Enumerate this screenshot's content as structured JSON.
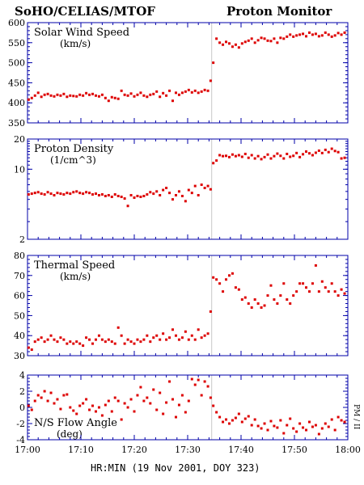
{
  "header": {
    "left": "SoHO/CELIAS/MTOF",
    "right": "Proton Monitor"
  },
  "x_axis_label": "HR:MIN (19 Nov 2001, DOY 323)",
  "side_label": "PM / II",
  "colors": {
    "points": "#dd0000",
    "axes": "#0000aa",
    "marker_line": "#c8c8c8"
  },
  "chart_data": [
    {
      "type": "scatter",
      "title": "Solar Wind Speed",
      "units": "(km/s)",
      "xlim": [
        0,
        60
      ],
      "ylim": [
        350,
        600
      ],
      "yticks": [
        350,
        400,
        450,
        500,
        550,
        600
      ],
      "xtick_labels": [
        "17:00",
        "17:10",
        "17:20",
        "17:30",
        "17:40",
        "17:50",
        "18:00"
      ],
      "marker_x": 34.5,
      "x": [
        0.2,
        0.8,
        1.4,
        2.0,
        2.6,
        3.2,
        3.8,
        4.4,
        5.0,
        5.6,
        6.2,
        6.8,
        7.4,
        8.0,
        8.6,
        9.2,
        9.8,
        10.4,
        11.0,
        11.6,
        12.2,
        12.8,
        13.4,
        14.0,
        14.6,
        15.2,
        15.8,
        16.4,
        17.0,
        17.6,
        18.2,
        18.8,
        19.4,
        20.0,
        20.6,
        21.2,
        21.8,
        22.4,
        23.0,
        23.6,
        24.2,
        24.8,
        25.4,
        26.0,
        26.6,
        27.2,
        27.8,
        28.4,
        29.0,
        29.6,
        30.2,
        30.8,
        31.4,
        32.0,
        32.6,
        33.2,
        33.8,
        34.3,
        34.8,
        35.4,
        36.0,
        36.6,
        37.2,
        37.8,
        38.4,
        39.0,
        39.6,
        40.2,
        40.8,
        41.4,
        42.0,
        42.6,
        43.2,
        43.8,
        44.4,
        45.0,
        45.6,
        46.2,
        46.8,
        47.4,
        48.0,
        48.6,
        49.2,
        49.8,
        50.4,
        51.0,
        51.6,
        52.2,
        52.8,
        53.4,
        54.0,
        54.6,
        55.2,
        55.8,
        56.4,
        57.0,
        57.6,
        58.2,
        58.8,
        59.4
      ],
      "y": [
        408,
        412,
        418,
        425,
        415,
        420,
        422,
        418,
        416,
        420,
        418,
        422,
        415,
        418,
        417,
        416,
        420,
        418,
        424,
        420,
        422,
        418,
        416,
        420,
        412,
        405,
        414,
        412,
        410,
        430,
        420,
        418,
        423,
        416,
        420,
        425,
        418,
        415,
        420,
        422,
        428,
        415,
        424,
        418,
        430,
        405,
        425,
        420,
        425,
        428,
        432,
        426,
        430,
        425,
        428,
        432,
        430,
        455,
        500,
        560,
        550,
        545,
        552,
        548,
        540,
        545,
        538,
        548,
        552,
        555,
        560,
        550,
        556,
        562,
        560,
        555,
        554,
        560,
        550,
        562,
        560,
        565,
        570,
        565,
        568,
        570,
        572,
        566,
        575,
        570,
        572,
        566,
        568,
        575,
        570,
        565,
        568,
        574,
        570,
        575
      ]
    },
    {
      "type": "scatter",
      "title": "Proton Density",
      "units": "(1/cm^3)",
      "xlim": [
        0,
        60
      ],
      "ylim": [
        2,
        20
      ],
      "log_scale": true,
      "yticks": [
        2,
        10,
        20
      ],
      "xtick_labels": [
        "17:00",
        "17:10",
        "17:20",
        "17:30",
        "17:40",
        "17:50",
        "18:00"
      ],
      "marker_x": 34.5,
      "x": [
        0.2,
        0.8,
        1.4,
        2.0,
        2.6,
        3.2,
        3.8,
        4.4,
        5.0,
        5.6,
        6.2,
        6.8,
        7.4,
        8.0,
        8.6,
        9.2,
        9.8,
        10.4,
        11.0,
        11.6,
        12.2,
        12.8,
        13.4,
        14.0,
        14.6,
        15.2,
        15.8,
        16.4,
        17.0,
        17.6,
        18.2,
        18.8,
        19.4,
        20.0,
        20.6,
        21.2,
        21.8,
        22.4,
        23.0,
        23.6,
        24.2,
        24.8,
        25.4,
        26.0,
        26.6,
        27.2,
        27.8,
        28.4,
        29.0,
        29.6,
        30.2,
        30.8,
        31.4,
        32.0,
        32.6,
        33.2,
        33.8,
        34.3,
        34.8,
        35.4,
        36.0,
        36.6,
        37.2,
        37.8,
        38.4,
        39.0,
        39.6,
        40.2,
        40.8,
        41.4,
        42.0,
        42.6,
        43.2,
        43.8,
        44.4,
        45.0,
        45.6,
        46.2,
        46.8,
        47.4,
        48.0,
        48.6,
        49.2,
        49.8,
        50.4,
        51.0,
        51.6,
        52.2,
        52.8,
        53.4,
        54.0,
        54.6,
        55.2,
        55.8,
        56.4,
        57.0,
        57.6,
        58.2,
        58.8,
        59.4
      ],
      "y": [
        5.6,
        5.7,
        5.8,
        5.9,
        5.7,
        5.6,
        5.9,
        5.7,
        5.5,
        5.8,
        5.7,
        5.6,
        5.8,
        5.7,
        5.9,
        6.0,
        5.8,
        5.7,
        5.9,
        5.8,
        5.6,
        5.7,
        5.5,
        5.6,
        5.4,
        5.5,
        5.3,
        5.6,
        5.4,
        5.3,
        5.1,
        4.3,
        5.5,
        5.2,
        5.4,
        5.3,
        5.4,
        5.6,
        5.9,
        5.7,
        6.0,
        5.5,
        6.2,
        6.5,
        5.8,
        5.0,
        5.5,
        6.0,
        5.4,
        4.8,
        6.2,
        5.8,
        6.8,
        5.5,
        7.0,
        6.5,
        6.8,
        6.3,
        11.5,
        12.2,
        13.8,
        13.5,
        13.6,
        13.2,
        14.0,
        13.5,
        13.8,
        13.3,
        14.2,
        13.0,
        13.8,
        12.8,
        13.5,
        12.6,
        13.2,
        14.0,
        12.8,
        13.5,
        14.3,
        13.6,
        12.8,
        14.2,
        13.3,
        13.6,
        14.5,
        13.2,
        14.1,
        15.0,
        14.4,
        13.8,
        14.6,
        15.3,
        14.5,
        15.6,
        14.8,
        16.0,
        15.2,
        14.8,
        12.8,
        13.0
      ]
    },
    {
      "type": "scatter",
      "title": "Thermal Speed",
      "units": "(km/s)",
      "xlim": [
        0,
        60
      ],
      "ylim": [
        30,
        80
      ],
      "yticks": [
        30,
        40,
        50,
        60,
        70,
        80
      ],
      "xtick_labels": [
        "17:00",
        "17:10",
        "17:20",
        "17:30",
        "17:40",
        "17:50",
        "18:00"
      ],
      "marker_x": 34.5,
      "x": [
        0.2,
        0.8,
        1.4,
        2.0,
        2.6,
        3.2,
        3.8,
        4.4,
        5.0,
        5.6,
        6.2,
        6.8,
        7.4,
        8.0,
        8.6,
        9.2,
        9.8,
        10.4,
        11.0,
        11.6,
        12.2,
        12.8,
        13.4,
        14.0,
        14.6,
        15.2,
        15.8,
        16.4,
        17.0,
        17.6,
        18.2,
        18.8,
        19.4,
        20.0,
        20.6,
        21.2,
        21.8,
        22.4,
        23.0,
        23.6,
        24.2,
        24.8,
        25.4,
        26.0,
        26.6,
        27.2,
        27.8,
        28.4,
        29.0,
        29.6,
        30.2,
        30.8,
        31.4,
        32.0,
        32.6,
        33.2,
        33.8,
        34.3,
        34.8,
        35.4,
        36.0,
        36.6,
        37.2,
        37.8,
        38.4,
        39.0,
        39.6,
        40.2,
        40.8,
        41.4,
        42.0,
        42.6,
        43.2,
        43.8,
        44.4,
        45.0,
        45.6,
        46.2,
        46.8,
        47.4,
        48.0,
        48.6,
        49.2,
        49.8,
        50.4,
        51.0,
        51.6,
        52.2,
        52.8,
        53.4,
        54.0,
        54.6,
        55.2,
        55.8,
        56.4,
        57.0,
        57.6,
        58.2,
        58.8,
        59.4
      ],
      "y": [
        34,
        33,
        37,
        38,
        39,
        37,
        38,
        40,
        38,
        37,
        39,
        38,
        36,
        37,
        36,
        37,
        36,
        35,
        39,
        38,
        36,
        38,
        40,
        38,
        37,
        38,
        37,
        36,
        44,
        40,
        36,
        38,
        37,
        36,
        38,
        37,
        38,
        40,
        37,
        39,
        40,
        38,
        41,
        38,
        39,
        43,
        40,
        38,
        39,
        42,
        38,
        40,
        38,
        43,
        39,
        40,
        41,
        52,
        69,
        68,
        66,
        62,
        68,
        70,
        71,
        64,
        63,
        58,
        59,
        56,
        54,
        58,
        56,
        54,
        55,
        60,
        65,
        58,
        56,
        60,
        66,
        58,
        56,
        60,
        62,
        66,
        66,
        64,
        62,
        66,
        75,
        62,
        67,
        64,
        62,
        66,
        62,
        60,
        63,
        61
      ]
    },
    {
      "type": "scatter",
      "title": "N/S Flow Angle",
      "units": "(deg)",
      "xlim": [
        0,
        60
      ],
      "ylim": [
        -4,
        4
      ],
      "yticks": [
        -4,
        -2,
        0,
        2,
        4
      ],
      "xtick_labels": [
        "17:00",
        "17:10",
        "17:20",
        "17:30",
        "17:40",
        "17:50",
        "18:00"
      ],
      "marker_x": 34.5,
      "x": [
        0.2,
        0.8,
        1.4,
        2.0,
        2.6,
        3.2,
        3.8,
        4.4,
        5.0,
        5.6,
        6.2,
        6.8,
        7.4,
        8.0,
        8.6,
        9.2,
        9.8,
        10.4,
        11.0,
        11.6,
        12.2,
        12.8,
        13.4,
        14.0,
        14.6,
        15.2,
        15.8,
        16.4,
        17.0,
        17.6,
        18.2,
        18.8,
        19.4,
        20.0,
        20.6,
        21.2,
        21.8,
        22.4,
        23.0,
        23.6,
        24.2,
        24.8,
        25.4,
        26.0,
        26.6,
        27.2,
        27.8,
        28.4,
        29.0,
        29.6,
        30.2,
        30.8,
        31.4,
        32.0,
        32.6,
        33.2,
        33.8,
        34.3,
        34.8,
        35.4,
        36.0,
        36.6,
        37.2,
        37.8,
        38.4,
        39.0,
        39.6,
        40.2,
        40.8,
        41.4,
        42.0,
        42.6,
        43.2,
        43.8,
        44.4,
        45.0,
        45.6,
        46.2,
        46.8,
        47.4,
        48.0,
        48.6,
        49.2,
        49.8,
        50.4,
        51.0,
        51.6,
        52.2,
        52.8,
        53.4,
        54.0,
        54.6,
        55.2,
        55.8,
        56.4,
        57.0,
        57.6,
        58.2,
        58.8,
        59.4
      ],
      "y": [
        0.2,
        -0.3,
        0.8,
        1.5,
        1.2,
        2.0,
        0.8,
        1.8,
        0.5,
        1.0,
        -0.2,
        1.5,
        1.6,
        0.0,
        -0.4,
        -0.8,
        0.2,
        0.5,
        1.0,
        -0.3,
        0.2,
        -0.5,
        0.0,
        -1.0,
        0.3,
        0.8,
        -0.5,
        1.2,
        0.8,
        -1.5,
        0.5,
        0.0,
        1.0,
        -0.5,
        1.5,
        2.5,
        0.8,
        1.2,
        0.5,
        2.2,
        -0.3,
        1.8,
        -0.8,
        0.6,
        3.2,
        1.0,
        -1.2,
        0.3,
        1.5,
        -0.6,
        0.8,
        3.5,
        2.8,
        3.4,
        1.5,
        3.2,
        2.6,
        1.2,
        0.2,
        -0.6,
        -1.2,
        -1.8,
        -1.5,
        -2.0,
        -1.6,
        -1.3,
        -0.8,
        -1.8,
        -1.4,
        -1.1,
        -2.2,
        -1.5,
        -2.3,
        -2.6,
        -2.0,
        -2.8,
        -1.7,
        -2.3,
        -2.5,
        -1.6,
        -3.2,
        -2.2,
        -1.4,
        -2.6,
        -3.0,
        -2.0,
        -2.5,
        -2.8,
        -1.8,
        -2.4,
        -2.2,
        -3.3,
        -2.6,
        -2.0,
        -2.4,
        -1.5,
        -2.8,
        -1.2,
        -1.6,
        -1.8
      ]
    }
  ]
}
